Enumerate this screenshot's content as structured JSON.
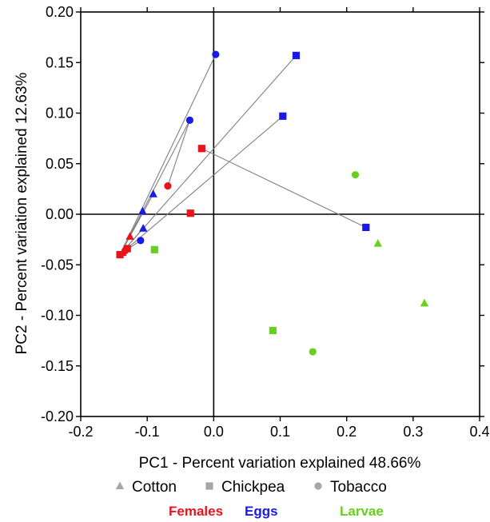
{
  "chart_data": {
    "type": "scatter",
    "xlabel": "PC1 - Percent variation explained 48.66%",
    "ylabel": "PC2 - Percent variation explained 12.63%",
    "xlim": [
      -0.2,
      0.4
    ],
    "ylim": [
      -0.2,
      0.2
    ],
    "x_ticks": [
      "-0.2",
      "-0.1",
      "0.0",
      "0.1",
      "0.2",
      "0.3",
      "0.4"
    ],
    "y_ticks": [
      "0.20",
      "0.15",
      "0.10",
      "0.05",
      "0.00",
      "-0.05",
      "-0.10",
      "-0.15",
      "-0.20"
    ],
    "grid": false,
    "zero_lines": true,
    "legend_shapes": [
      {
        "label": "Cotton",
        "shape": "triangle"
      },
      {
        "label": "Chickpea",
        "shape": "square"
      },
      {
        "label": "Tobacco",
        "shape": "circle"
      }
    ],
    "legend_groups": [
      {
        "label": "Females",
        "color": "#e8141c"
      },
      {
        "label": "Eggs",
        "color": "#1a1ae6"
      },
      {
        "label": "Larvae",
        "color": "#66d11d"
      }
    ],
    "connect_color": "#808080",
    "series": [
      {
        "name": "Females",
        "color": "#e8141c",
        "points": [
          {
            "x": -0.141,
            "y": -0.04,
            "shape": "square"
          },
          {
            "x": -0.137,
            "y": -0.038,
            "shape": "triangle"
          },
          {
            "x": -0.133,
            "y": -0.036,
            "shape": "circle"
          },
          {
            "x": -0.13,
            "y": -0.034,
            "shape": "square"
          },
          {
            "x": -0.126,
            "y": -0.022,
            "shape": "triangle"
          },
          {
            "x": -0.069,
            "y": 0.028,
            "shape": "circle"
          },
          {
            "x": -0.035,
            "y": 0.001,
            "shape": "square"
          },
          {
            "x": -0.018,
            "y": 0.065,
            "shape": "square"
          }
        ]
      },
      {
        "name": "Eggs",
        "color": "#1a1ae6",
        "points": [
          {
            "x": -0.11,
            "y": -0.026,
            "shape": "circle"
          },
          {
            "x": -0.107,
            "y": 0.003,
            "shape": "triangle"
          },
          {
            "x": -0.106,
            "y": -0.014,
            "shape": "triangle"
          },
          {
            "x": -0.091,
            "y": 0.02,
            "shape": "triangle"
          },
          {
            "x": -0.036,
            "y": 0.093,
            "shape": "circle"
          },
          {
            "x": 0.003,
            "y": 0.158,
            "shape": "circle"
          },
          {
            "x": 0.124,
            "y": 0.157,
            "shape": "square"
          },
          {
            "x": 0.104,
            "y": 0.097,
            "shape": "square"
          },
          {
            "x": 0.229,
            "y": -0.013,
            "shape": "square"
          }
        ]
      },
      {
        "name": "Larvae",
        "color": "#66d11d",
        "points": [
          {
            "x": -0.089,
            "y": -0.035,
            "shape": "square"
          },
          {
            "x": 0.213,
            "y": 0.039,
            "shape": "circle"
          },
          {
            "x": 0.247,
            "y": -0.029,
            "shape": "triangle"
          },
          {
            "x": 0.317,
            "y": -0.088,
            "shape": "triangle"
          },
          {
            "x": 0.089,
            "y": -0.115,
            "shape": "square"
          },
          {
            "x": 0.149,
            "y": -0.136,
            "shape": "circle"
          }
        ]
      }
    ],
    "connections": [
      [
        [
          -0.141,
          -0.04
        ],
        [
          0.003,
          0.158
        ]
      ],
      [
        [
          -0.141,
          -0.04
        ],
        [
          0.124,
          0.157
        ]
      ],
      [
        [
          -0.141,
          -0.04
        ],
        [
          0.104,
          0.097
        ]
      ],
      [
        [
          -0.141,
          -0.04
        ],
        [
          -0.036,
          0.093
        ]
      ],
      [
        [
          -0.036,
          0.093
        ],
        [
          -0.069,
          0.028
        ]
      ],
      [
        [
          -0.141,
          -0.04
        ],
        [
          -0.091,
          0.02
        ]
      ],
      [
        [
          -0.141,
          -0.04
        ],
        [
          -0.107,
          0.003
        ]
      ],
      [
        [
          -0.141,
          -0.04
        ],
        [
          -0.106,
          -0.014
        ]
      ],
      [
        [
          -0.141,
          -0.04
        ],
        [
          -0.11,
          -0.026
        ]
      ],
      [
        [
          -0.018,
          0.065
        ],
        [
          0.229,
          -0.013
        ]
      ]
    ]
  }
}
